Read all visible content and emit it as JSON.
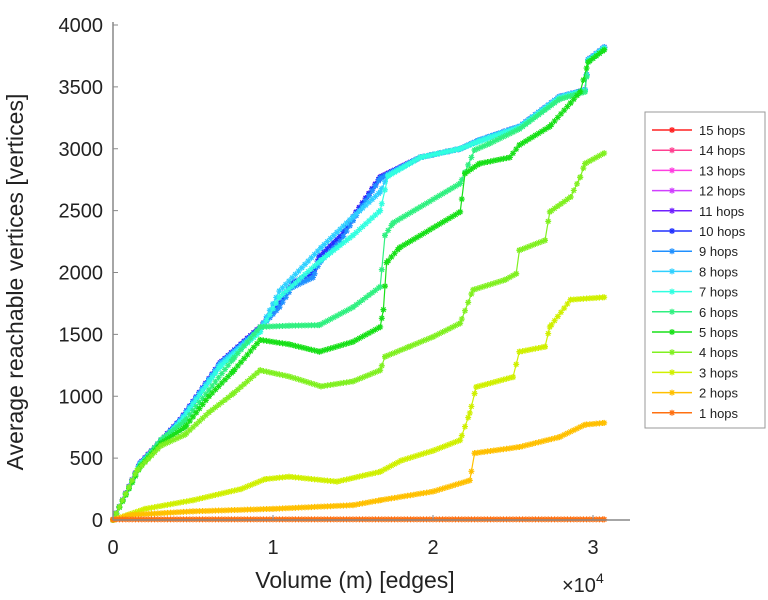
{
  "chart_data": {
    "type": "line",
    "title": "",
    "xlabel": "Volume (m) [edges]",
    "ylabel": "Average reachable vertices [vertices]",
    "x_multiplier_label": "×10",
    "x_multiplier_exp": "4",
    "xlim": [
      0,
      3.2
    ],
    "ylim": [
      0,
      4000
    ],
    "xticks": [
      0,
      1,
      2,
      3
    ],
    "xtick_labels": [
      "0",
      "1",
      "2",
      "3"
    ],
    "yticks": [
      0,
      500,
      1000,
      1500,
      2000,
      2500,
      3000,
      3500,
      4000
    ],
    "ytick_labels": [
      "0",
      "500",
      "1000",
      "1500",
      "2000",
      "2500",
      "3000",
      "3500",
      "4000"
    ],
    "grid": false,
    "legend_position": "right",
    "series": [
      {
        "name": "15 hops",
        "color": "#ff2020",
        "x": [
          0,
          0.17,
          0.42,
          0.67,
          0.92,
          1.04,
          1.12,
          1.25,
          1.29,
          1.42,
          1.5,
          1.67,
          1.92,
          2.17,
          2.29,
          2.54,
          2.79,
          2.95,
          2.97,
          3.07
        ],
        "y": [
          0,
          460,
          810,
          1270,
          1560,
          1750,
          1915,
          1995,
          2125,
          2290,
          2450,
          2770,
          2930,
          3000,
          3070,
          3180,
          3420,
          3475,
          3720,
          3820
        ]
      },
      {
        "name": "14 hops",
        "color": "#ff4090",
        "x": [
          0,
          0.17,
          0.42,
          0.67,
          0.92,
          1.04,
          1.12,
          1.25,
          1.29,
          1.42,
          1.5,
          1.67,
          1.92,
          2.17,
          2.29,
          2.54,
          2.79,
          2.95,
          2.97,
          3.07
        ],
        "y": [
          0,
          460,
          810,
          1270,
          1560,
          1750,
          1915,
          1995,
          2125,
          2290,
          2450,
          2770,
          2930,
          3000,
          3070,
          3180,
          3420,
          3475,
          3720,
          3820
        ]
      },
      {
        "name": "13 hops",
        "color": "#ff40e0",
        "x": [
          0,
          0.17,
          0.42,
          0.67,
          0.92,
          1.04,
          1.12,
          1.25,
          1.29,
          1.42,
          1.5,
          1.67,
          1.92,
          2.17,
          2.29,
          2.54,
          2.79,
          2.95,
          2.97,
          3.07
        ],
        "y": [
          0,
          460,
          810,
          1270,
          1560,
          1750,
          1915,
          1995,
          2125,
          2290,
          2450,
          2770,
          2930,
          3000,
          3070,
          3180,
          3420,
          3475,
          3720,
          3820
        ]
      },
      {
        "name": "12 hops",
        "color": "#d040ff",
        "x": [
          0,
          0.17,
          0.42,
          0.67,
          0.92,
          1.04,
          1.12,
          1.25,
          1.29,
          1.42,
          1.5,
          1.67,
          1.92,
          2.17,
          2.29,
          2.54,
          2.79,
          2.95,
          2.97,
          3.07
        ],
        "y": [
          0,
          460,
          810,
          1270,
          1560,
          1750,
          1915,
          1995,
          2125,
          2290,
          2450,
          2770,
          2930,
          3000,
          3070,
          3180,
          3420,
          3475,
          3720,
          3820
        ]
      },
      {
        "name": "11 hops",
        "color": "#7020ff",
        "x": [
          0,
          0.17,
          0.42,
          0.67,
          0.92,
          1.04,
          1.12,
          1.25,
          1.29,
          1.42,
          1.5,
          1.67,
          1.92,
          2.17,
          2.29,
          2.54,
          2.79,
          2.95,
          2.97,
          3.07
        ],
        "y": [
          0,
          460,
          810,
          1270,
          1560,
          1750,
          1915,
          1995,
          2125,
          2290,
          2450,
          2770,
          2930,
          3000,
          3070,
          3180,
          3420,
          3475,
          3720,
          3820
        ]
      },
      {
        "name": "10 hops",
        "color": "#2030ff",
        "x": [
          0,
          0.17,
          0.42,
          0.67,
          0.92,
          1.04,
          1.12,
          1.25,
          1.29,
          1.42,
          1.5,
          1.67,
          1.92,
          2.17,
          2.29,
          2.54,
          2.79,
          2.95,
          2.97,
          3.07
        ],
        "y": [
          0,
          460,
          810,
          1270,
          1560,
          1750,
          1915,
          1995,
          2125,
          2290,
          2450,
          2770,
          2930,
          3000,
          3070,
          3180,
          3420,
          3475,
          3720,
          3820
        ]
      },
      {
        "name": "9 hops",
        "color": "#2090ff",
        "x": [
          0,
          0.17,
          0.42,
          0.67,
          0.92,
          1.04,
          1.12,
          1.25,
          1.29,
          1.42,
          1.5,
          1.67,
          1.92,
          2.17,
          2.29,
          2.54,
          2.79,
          2.95,
          2.97,
          3.07
        ],
        "y": [
          0,
          455,
          805,
          1265,
          1550,
          1720,
          1880,
          1960,
          2080,
          2250,
          2420,
          2760,
          2930,
          3000,
          3070,
          3180,
          3420,
          3475,
          3720,
          3820
        ]
      },
      {
        "name": "8 hops",
        "color": "#30d0ff",
        "x": [
          0,
          0.17,
          0.42,
          0.67,
          0.92,
          1.04,
          1.3,
          1.5,
          1.67,
          1.72,
          1.92,
          2.17,
          2.29,
          2.54,
          2.79,
          2.95,
          2.97,
          3.07
        ],
        "y": [
          0,
          455,
          800,
          1260,
          1540,
          1850,
          2200,
          2450,
          2650,
          2790,
          2930,
          3000,
          3070,
          3180,
          3420,
          3475,
          3720,
          3820
        ]
      },
      {
        "name": "7 hops",
        "color": "#30ffe0",
        "x": [
          0,
          0.17,
          0.42,
          0.67,
          0.92,
          1.04,
          1.3,
          1.5,
          1.67,
          1.72,
          1.92,
          2.17,
          2.29,
          2.54,
          2.79,
          2.95,
          2.97,
          3.07
        ],
        "y": [
          0,
          450,
          790,
          1240,
          1520,
          1800,
          2100,
          2300,
          2500,
          2780,
          2930,
          3000,
          3060,
          3170,
          3410,
          3470,
          3710,
          3810
        ]
      },
      {
        "name": "6 hops",
        "color": "#30f080",
        "x": [
          0,
          0.17,
          0.3,
          0.45,
          0.6,
          0.75,
          0.92,
          1.1,
          1.29,
          1.5,
          1.67,
          1.7,
          1.75,
          2.17,
          2.26,
          2.35,
          2.54,
          2.79,
          2.95,
          2.97,
          3.07
        ],
        "y": [
          0,
          440,
          650,
          800,
          1050,
          1300,
          1560,
          1570,
          1575,
          1720,
          1885,
          2300,
          2400,
          2720,
          2990,
          3040,
          3160,
          3400,
          3460,
          3700,
          3800
        ]
      },
      {
        "name": "5 hops",
        "color": "#18e018",
        "x": [
          0,
          0.17,
          0.3,
          0.45,
          0.6,
          0.75,
          0.92,
          1.1,
          1.29,
          1.5,
          1.67,
          1.69,
          1.71,
          1.79,
          2.17,
          2.2,
          2.29,
          2.48,
          2.54,
          2.73,
          2.86,
          2.92,
          2.97,
          3.07
        ],
        "y": [
          0,
          430,
          620,
          750,
          1000,
          1200,
          1455,
          1420,
          1360,
          1440,
          1560,
          1700,
          2080,
          2200,
          2490,
          2800,
          2880,
          2930,
          3030,
          3180,
          3370,
          3460,
          3700,
          3800
        ]
      },
      {
        "name": "4 hops",
        "color": "#80f020",
        "x": [
          0,
          0.15,
          0.3,
          0.45,
          0.6,
          0.75,
          0.92,
          1.1,
          1.3,
          1.5,
          1.67,
          1.7,
          1.85,
          2.0,
          2.17,
          2.25,
          2.45,
          2.52,
          2.54,
          2.7,
          2.73,
          2.86,
          2.92,
          2.95,
          3.07
        ],
        "y": [
          0,
          400,
          600,
          690,
          870,
          1020,
          1210,
          1160,
          1080,
          1120,
          1210,
          1320,
          1400,
          1480,
          1590,
          1860,
          1940,
          1990,
          2180,
          2260,
          2490,
          2610,
          2770,
          2880,
          2965
        ]
      },
      {
        "name": "3 hops",
        "color": "#d0f000",
        "x": [
          0,
          0.2,
          0.5,
          0.8,
          0.95,
          1.1,
          1.4,
          1.67,
          1.8,
          2.0,
          2.17,
          2.23,
          2.27,
          2.5,
          2.54,
          2.7,
          2.73,
          2.86,
          3.07
        ],
        "y": [
          0,
          90,
          160,
          250,
          330,
          350,
          310,
          390,
          480,
          560,
          645,
          865,
          1075,
          1155,
          1360,
          1400,
          1560,
          1780,
          1800
        ]
      },
      {
        "name": "2 hops",
        "color": "#ffc000",
        "x": [
          0,
          0.1,
          0.5,
          1.0,
          1.5,
          1.67,
          2.0,
          2.23,
          2.26,
          2.54,
          2.79,
          2.95,
          3.07
        ],
        "y": [
          0,
          40,
          70,
          90,
          120,
          160,
          230,
          320,
          540,
          590,
          670,
          770,
          785
        ]
      },
      {
        "name": "1 hops",
        "color": "#ff7010",
        "x": [
          0,
          3.07
        ],
        "y": [
          5,
          5
        ]
      }
    ]
  }
}
